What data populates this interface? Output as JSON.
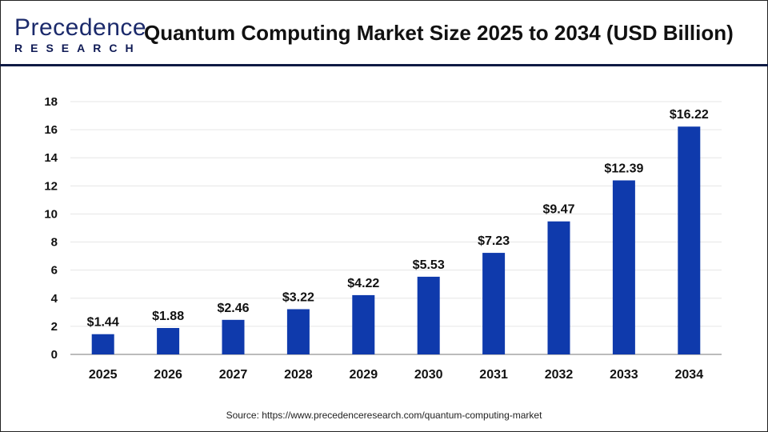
{
  "logo": {
    "line1": "Precedence",
    "line2": "RESEARCH"
  },
  "header": {
    "title": "Quantum Computing Market Size 2025 to 2034 (USD Billion)"
  },
  "source": "Source: https://www.precedenceresearch.com/quantum-computing-market",
  "chart_data": {
    "type": "bar",
    "title": "Quantum Computing Market Size 2025 to 2034 (USD Billion)",
    "xlabel": "",
    "ylabel": "",
    "categories": [
      "2025",
      "2026",
      "2027",
      "2028",
      "2029",
      "2030",
      "2031",
      "2032",
      "2033",
      "2034"
    ],
    "values": [
      1.44,
      1.88,
      2.46,
      3.22,
      4.22,
      5.53,
      7.23,
      9.47,
      12.39,
      16.22
    ],
    "data_labels": [
      "$1.44",
      "$1.88",
      "$2.46",
      "$3.22",
      "$4.22",
      "$5.53",
      "$7.23",
      "$9.47",
      "$12.39",
      "$16.22"
    ],
    "ylim": [
      0,
      18
    ],
    "yticks": [
      0,
      2,
      4,
      6,
      8,
      10,
      12,
      14,
      16,
      18
    ],
    "grid": true,
    "bar_color": "#0f3aac"
  }
}
